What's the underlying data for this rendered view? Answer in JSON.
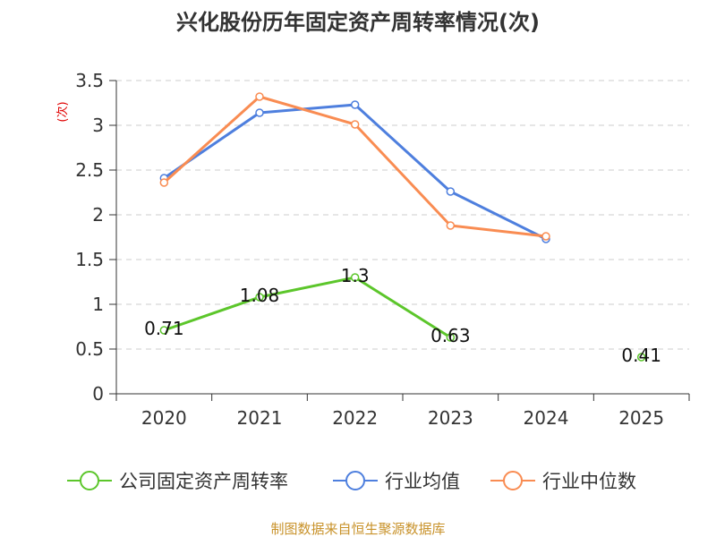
{
  "chart_data": {
    "type": "line",
    "title": "兴化股份历年固定资产周转率情况(次)",
    "ylabel": "(次)",
    "xlabel": "",
    "categories": [
      "2020",
      "2021",
      "2022",
      "2023",
      "2024",
      "2025"
    ],
    "ylim": [
      0,
      3.5
    ],
    "yticks": [
      0,
      0.5,
      1,
      1.5,
      2,
      2.5,
      3,
      3.5
    ],
    "ytick_labels": [
      "0",
      "0.5",
      "1",
      "1.5",
      "2",
      "2.5",
      "3",
      "3.5"
    ],
    "grid": true,
    "legend_position": "bottom",
    "series": [
      {
        "name": "公司固定资产周转率",
        "color": "#5cc62b",
        "values": [
          0.71,
          1.08,
          1.3,
          0.63,
          null,
          0.41
        ],
        "labels": [
          "0.71",
          "1.08",
          "1.3",
          "0.63",
          null,
          "0.41"
        ]
      },
      {
        "name": "行业均值",
        "color": "#4e7fde",
        "values": [
          2.41,
          3.14,
          3.23,
          2.26,
          1.73,
          null
        ]
      },
      {
        "name": "行业中位数",
        "color": "#f98c52",
        "values": [
          2.36,
          3.32,
          3.01,
          1.88,
          1.76,
          null
        ]
      }
    ]
  },
  "source": "制图数据来自恒生聚源数据库"
}
